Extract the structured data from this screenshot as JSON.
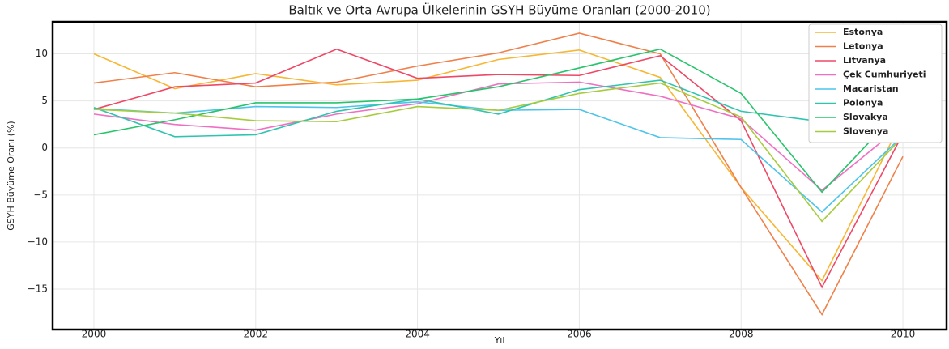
{
  "chart_data": {
    "type": "line",
    "title": "Baltık ve Orta Avrupa Ülkelerinin GSYH Büyüme Oranları (2000-2010)",
    "xlabel": "Yıl",
    "ylabel": "GSYH Büyüme Oranı (%)",
    "x": [
      2000,
      2001,
      2002,
      2003,
      2004,
      2005,
      2006,
      2007,
      2008,
      2009,
      2010
    ],
    "series": [
      {
        "name": "Estonya",
        "color": "#f7b633",
        "values": [
          10.0,
          6.3,
          7.9,
          6.7,
          7.2,
          9.4,
          10.4,
          7.5,
          -4.2,
          -14.1,
          3.1
        ]
      },
      {
        "name": "Letonya",
        "color": "#f0804a",
        "values": [
          6.9,
          8.0,
          6.5,
          7.0,
          8.7,
          10.1,
          12.2,
          10.0,
          -4.2,
          -17.7,
          -0.9
        ]
      },
      {
        "name": "Litvanya",
        "color": "#ee4866",
        "values": [
          4.1,
          6.5,
          6.9,
          10.5,
          7.4,
          7.8,
          7.7,
          9.8,
          2.9,
          -14.8,
          1.5
        ]
      },
      {
        "name": "Çek Cumhuriyeti",
        "color": "#ef6fc4",
        "values": [
          3.6,
          2.5,
          1.9,
          3.6,
          4.7,
          6.8,
          7.0,
          5.5,
          3.1,
          -4.5,
          2.5
        ]
      },
      {
        "name": "Macaristan",
        "color": "#4dc4ea",
        "values": [
          4.2,
          3.7,
          4.4,
          4.3,
          4.9,
          4.0,
          4.1,
          1.1,
          0.9,
          -6.8,
          1.3
        ]
      },
      {
        "name": "Polonya",
        "color": "#2ec4b0",
        "values": [
          4.3,
          1.2,
          1.4,
          3.9,
          5.2,
          3.6,
          6.2,
          7.2,
          3.9,
          2.8,
          3.6
        ]
      },
      {
        "name": "Slovakya",
        "color": "#27c46b",
        "values": [
          1.4,
          3.0,
          4.8,
          4.8,
          5.2,
          6.5,
          8.5,
          10.5,
          5.8,
          -4.7,
          4.4
        ]
      },
      {
        "name": "Slovenya",
        "color": "#a6cc3c",
        "values": [
          4.1,
          3.7,
          2.9,
          2.8,
          4.4,
          4.0,
          5.8,
          6.9,
          3.3,
          -7.8,
          1.2
        ]
      }
    ],
    "xlim": [
      1999.49,
      2010.54
    ],
    "xticks": [
      2000,
      2002,
      2004,
      2006,
      2008,
      2010
    ],
    "ylim": [
      -19.3,
      13.4
    ],
    "yticks": [
      {
        "value": -15,
        "label": "−15"
      },
      {
        "value": -10,
        "label": "−10"
      },
      {
        "value": -5,
        "label": "−5"
      },
      0,
      5,
      10
    ],
    "grid": true,
    "legend": "upper right"
  }
}
